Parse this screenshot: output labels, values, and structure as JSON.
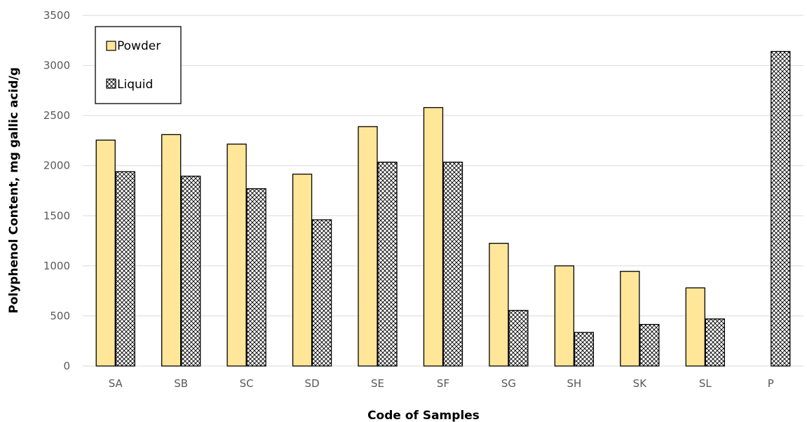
{
  "chart_data": {
    "type": "bar",
    "title": "",
    "xlabel": "Code of Samples",
    "ylabel": "Polyphenol Content, mg gallic acid/g",
    "ylim": [
      0,
      3500
    ],
    "yticks": [
      0,
      500,
      1000,
      1500,
      2000,
      2500,
      3000,
      3500
    ],
    "grid": "horizontal",
    "legend_position": "top-left",
    "categories": [
      "SA",
      "SB",
      "SC",
      "SD",
      "SE",
      "SF",
      "SG",
      "SH",
      "SK",
      "SL",
      "P"
    ],
    "series": [
      {
        "name": "Powder",
        "color": "#ffe699",
        "fill_style": "solid",
        "values": [
          2255,
          2310,
          2215,
          1915,
          2390,
          2580,
          1225,
          1000,
          945,
          780,
          null
        ]
      },
      {
        "name": "Liquid",
        "color": "#ffffff",
        "fill_style": "crosshatch",
        "values": [
          1940,
          1895,
          1770,
          1460,
          2035,
          2035,
          555,
          335,
          415,
          470,
          3140
        ]
      }
    ]
  }
}
